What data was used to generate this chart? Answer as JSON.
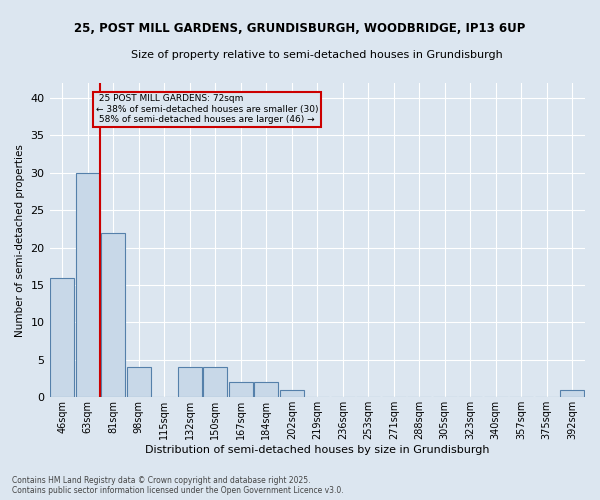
{
  "title_line1": "25, POST MILL GARDENS, GRUNDISBURGH, WOODBRIDGE, IP13 6UP",
  "title_line2": "Size of property relative to semi-detached houses in Grundisburgh",
  "xlabel": "Distribution of semi-detached houses by size in Grundisburgh",
  "ylabel": "Number of semi-detached properties",
  "categories": [
    "46sqm",
    "63sqm",
    "81sqm",
    "98sqm",
    "115sqm",
    "132sqm",
    "150sqm",
    "167sqm",
    "184sqm",
    "202sqm",
    "219sqm",
    "236sqm",
    "253sqm",
    "271sqm",
    "288sqm",
    "305sqm",
    "323sqm",
    "340sqm",
    "357sqm",
    "375sqm",
    "392sqm"
  ],
  "values": [
    16,
    30,
    22,
    4,
    0,
    4,
    4,
    2,
    2,
    1,
    0,
    0,
    0,
    0,
    0,
    0,
    0,
    0,
    0,
    0,
    1
  ],
  "bar_color": "#c8d8e8",
  "bar_edge_color": "#5580aa",
  "subject_bin_index": 1,
  "subject_label": "25 POST MILL GARDENS: 72sqm",
  "pct_smaller": "38% of semi-detached houses are smaller (30)",
  "pct_larger": "58% of semi-detached houses are larger (46)",
  "annotation_box_color": "#cc0000",
  "ylim": [
    0,
    42
  ],
  "yticks": [
    0,
    5,
    10,
    15,
    20,
    25,
    30,
    35,
    40
  ],
  "background_color": "#dce6f0",
  "grid_color": "#ffffff",
  "footer": "Contains HM Land Registry data © Crown copyright and database right 2025.\nContains public sector information licensed under the Open Government Licence v3.0."
}
